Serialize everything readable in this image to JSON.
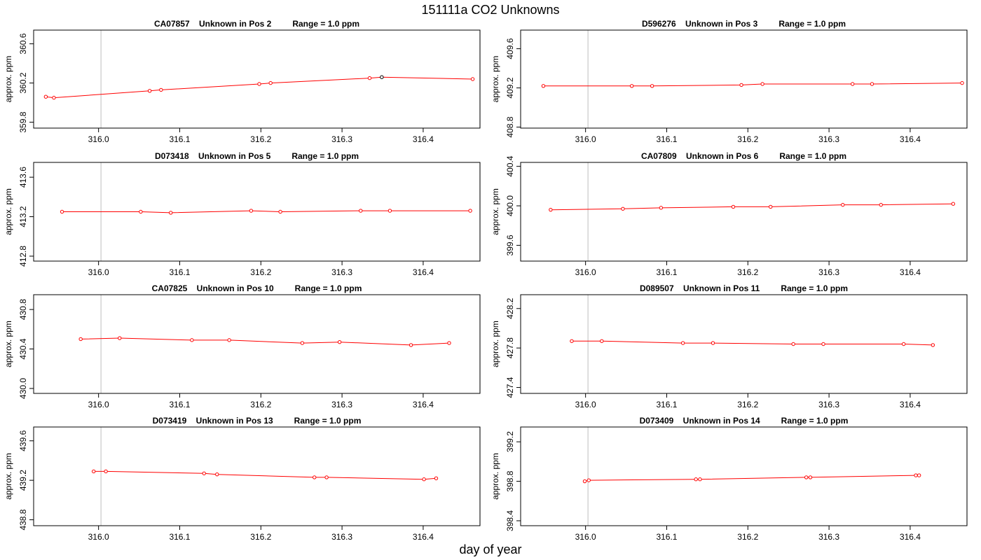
{
  "title": "151111a  CO2 Unknowns",
  "xlabel": "day of year",
  "colors": {
    "line": "#ff0000",
    "marker": "#ff0000",
    "highlight": "#000000",
    "vline": "#c8c8c8",
    "axis": "#000000"
  },
  "chart_data": [
    {
      "type": "line",
      "title": "CA07857    Unknown in Pos 2         Range = 1.0 ppm",
      "ylabel": "approx. ppm",
      "xlim": [
        315.92,
        316.47
      ],
      "ylim": [
        359.74,
        360.74
      ],
      "xticks": [
        "316.0",
        "316.1",
        "316.2",
        "316.3",
        "316.4"
      ],
      "yticks": [
        "359.8",
        "360.2",
        "360.6"
      ],
      "vlines": [
        316.003,
        316.47
      ],
      "x": [
        315.935,
        315.945,
        316.063,
        316.077,
        316.198,
        316.212,
        316.334,
        316.349,
        316.461
      ],
      "y": [
        360.06,
        360.05,
        360.12,
        360.13,
        360.19,
        360.2,
        360.25,
        360.26,
        360.24
      ],
      "highlight_index": 7
    },
    {
      "type": "line",
      "title": "D596276    Unknown in Pos 3         Range = 1.0 ppm",
      "ylabel": "approx. ppm",
      "xlim": [
        315.92,
        316.47
      ],
      "ylim": [
        408.79,
        409.79
      ],
      "xticks": [
        "316.0",
        "316.1",
        "316.2",
        "316.3",
        "316.4"
      ],
      "yticks": [
        "408.8",
        "409.2",
        "409.6"
      ],
      "vlines": [
        316.003,
        316.47
      ],
      "x": [
        315.948,
        316.057,
        316.082,
        316.192,
        316.218,
        316.329,
        316.353,
        316.464
      ],
      "y": [
        409.22,
        409.22,
        409.22,
        409.23,
        409.24,
        409.24,
        409.24,
        409.25
      ],
      "highlight_index": -1
    },
    {
      "type": "line",
      "title": "D073418    Unknown in Pos 5         Range = 1.0 ppm",
      "ylabel": "approx. ppm",
      "xlim": [
        315.92,
        316.47
      ],
      "ylim": [
        412.75,
        413.75
      ],
      "xticks": [
        "316.0",
        "316.1",
        "316.2",
        "316.3",
        "316.4"
      ],
      "yticks": [
        "412.8",
        "413.2",
        "413.6"
      ],
      "vlines": [
        316.003,
        316.47
      ],
      "x": [
        315.955,
        316.052,
        316.089,
        316.188,
        316.224,
        316.323,
        316.359,
        316.458
      ],
      "y": [
        413.25,
        413.25,
        413.24,
        413.26,
        413.25,
        413.26,
        413.26,
        413.26
      ],
      "highlight_index": -1
    },
    {
      "type": "line",
      "title": "CA07809    Unknown in Pos 6         Range = 1.0 ppm",
      "ylabel": "approx. ppm",
      "xlim": [
        315.92,
        316.47
      ],
      "ylim": [
        399.44,
        400.44
      ],
      "xticks": [
        "316.0",
        "316.1",
        "316.2",
        "316.3",
        "316.4"
      ],
      "yticks": [
        "399.6",
        "400.0",
        "400.4"
      ],
      "vlines": [
        316.003,
        316.47
      ],
      "x": [
        315.957,
        316.046,
        316.093,
        316.182,
        316.228,
        316.317,
        316.364,
        316.453
      ],
      "y": [
        399.96,
        399.97,
        399.98,
        399.99,
        399.99,
        400.01,
        400.01,
        400.02
      ],
      "highlight_index": -1
    },
    {
      "type": "line",
      "title": "CA07825    Unknown in Pos 10         Range = 1.0 ppm",
      "ylabel": "approx. ppm",
      "xlim": [
        315.92,
        316.47
      ],
      "ylim": [
        429.95,
        430.95
      ],
      "xticks": [
        "316.0",
        "316.1",
        "316.2",
        "316.3",
        "316.4"
      ],
      "yticks": [
        "430.0",
        "430.4",
        "430.8"
      ],
      "vlines": [
        316.003,
        316.47
      ],
      "x": [
        315.978,
        316.026,
        316.115,
        316.161,
        316.251,
        316.297,
        316.385,
        316.432
      ],
      "y": [
        430.5,
        430.51,
        430.49,
        430.49,
        430.46,
        430.47,
        430.44,
        430.46
      ],
      "highlight_index": -1
    },
    {
      "type": "line",
      "title": "D089507    Unknown in Pos 11         Range = 1.0 ppm",
      "ylabel": "approx. ppm",
      "xlim": [
        315.92,
        316.47
      ],
      "ylim": [
        427.34,
        428.34
      ],
      "xticks": [
        "316.0",
        "316.1",
        "316.2",
        "316.3",
        "316.4"
      ],
      "yticks": [
        "427.4",
        "427.8",
        "428.2"
      ],
      "vlines": [
        316.003,
        316.47
      ],
      "x": [
        315.983,
        316.02,
        316.12,
        316.157,
        316.256,
        316.293,
        316.392,
        316.428
      ],
      "y": [
        427.87,
        427.87,
        427.85,
        427.85,
        427.84,
        427.84,
        427.84,
        427.83
      ],
      "highlight_index": -1
    },
    {
      "type": "line",
      "title": "D073419    Unknown in Pos 13         Range = 1.0 ppm",
      "ylabel": "approx. ppm",
      "xlim": [
        315.92,
        316.47
      ],
      "ylim": [
        438.74,
        439.74
      ],
      "xticks": [
        "316.0",
        "316.1",
        "316.2",
        "316.3",
        "316.4"
      ],
      "yticks": [
        "438.8",
        "439.2",
        "439.6"
      ],
      "vlines": [
        316.003,
        316.47
      ],
      "x": [
        315.994,
        316.009,
        316.13,
        316.146,
        316.266,
        316.281,
        316.401,
        316.416
      ],
      "y": [
        439.29,
        439.29,
        439.27,
        439.26,
        439.23,
        439.23,
        439.21,
        439.22
      ],
      "highlight_index": -1
    },
    {
      "type": "line",
      "title": "D073409    Unknown in Pos 14         Range = 1.0 ppm",
      "ylabel": "approx. ppm",
      "xlim": [
        315.92,
        316.47
      ],
      "ylim": [
        398.35,
        399.35
      ],
      "xticks": [
        "316.0",
        "316.1",
        "316.2",
        "316.3",
        "316.4"
      ],
      "yticks": [
        "398.4",
        "398.8",
        "399.2"
      ],
      "vlines": [
        316.003,
        316.47
      ],
      "x": [
        315.999,
        316.004,
        316.136,
        316.141,
        316.272,
        316.277,
        316.407,
        316.411
      ],
      "y": [
        398.8,
        398.81,
        398.82,
        398.82,
        398.84,
        398.84,
        398.86,
        398.86
      ],
      "highlight_index": -1
    }
  ]
}
